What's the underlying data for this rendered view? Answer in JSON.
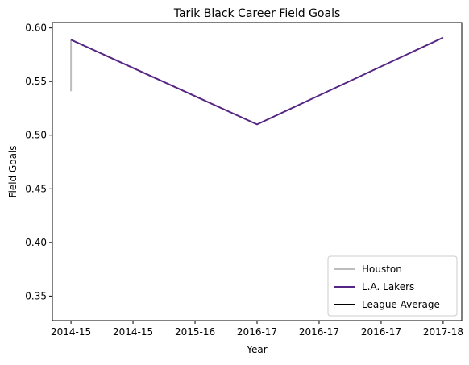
{
  "chart_data": {
    "type": "line",
    "title": "Tarik Black Career Field Goals",
    "xlabel": "Year",
    "ylabel": "Field Goals",
    "x_tick_labels": [
      "2014-15",
      "2014-15",
      "2015-16",
      "2016-17",
      "2016-17",
      "2016-17",
      "2017-18"
    ],
    "x_range": [
      -0.1,
      2.1
    ],
    "ylim": [
      0.327,
      0.605
    ],
    "y_ticks": [
      0.35,
      0.4,
      0.45,
      0.5,
      0.55,
      0.6
    ],
    "y_tick_labels": [
      "0.35",
      "0.40",
      "0.45",
      "0.50",
      "0.55",
      "0.60"
    ],
    "grid": false,
    "legend_position": "lower-right",
    "series": [
      {
        "name": "Houston",
        "color": "#bdbdbd",
        "x": [
          0,
          0
        ],
        "y": [
          0.541,
          0.589
        ]
      },
      {
        "name": "L.A. Lakers",
        "color": "#552583",
        "x": [
          0,
          1,
          2
        ],
        "y": [
          0.589,
          0.51,
          0.591
        ]
      },
      {
        "name": "League Average",
        "color": "#000000",
        "x": [],
        "y": []
      }
    ]
  }
}
